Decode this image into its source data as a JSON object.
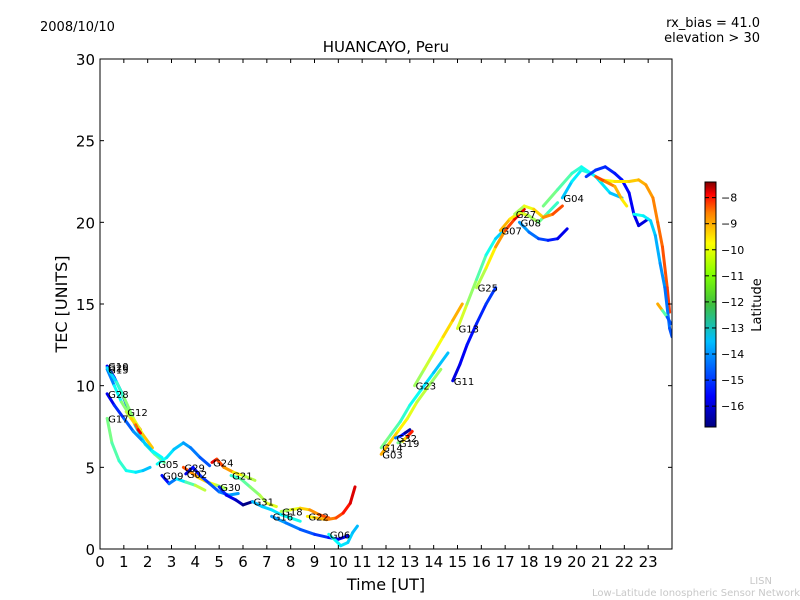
{
  "header": {
    "date": "2008/10/10",
    "rx_bias": "rx_bias = 41.0",
    "elevation": "elevation > 30"
  },
  "footer": {
    "short": "LISN",
    "long": "Low-Latitude Ionospheric Sensor Network"
  },
  "chart_data": {
    "type": "scatter",
    "title": "HUANCAYO, Peru",
    "xlabel": "Time [UT]",
    "ylabel": "TEC [UNITS]",
    "xlim": [
      0,
      24
    ],
    "ylim": [
      0,
      30
    ],
    "xticks": [
      0,
      1,
      2,
      3,
      4,
      5,
      6,
      7,
      8,
      9,
      10,
      11,
      12,
      13,
      14,
      15,
      16,
      17,
      18,
      19,
      20,
      21,
      22,
      23
    ],
    "yticks": [
      0,
      5,
      10,
      15,
      20,
      25,
      30
    ],
    "grid": false,
    "colorbar": {
      "label": "Latitude",
      "min": -16.8,
      "max": -7.4,
      "ticks": [
        -8,
        -9,
        -10,
        -11,
        -12,
        -13,
        -14,
        -15,
        -16
      ],
      "colors": [
        "#00007f",
        "#0000ff",
        "#007fff",
        "#00ffff",
        "#7fff7f",
        "#ffff00",
        "#ff7f00",
        "#ff0000",
        "#7f0000"
      ]
    },
    "series": [
      {
        "name": "G10",
        "lat": [
          -16,
          -12
        ],
        "points": [
          [
            0.3,
            11.2
          ],
          [
            0.6,
            10.5
          ],
          [
            0.9,
            9.6
          ],
          [
            1.2,
            8.5
          ],
          [
            1.5,
            7.5
          ],
          [
            1.9,
            6.4
          ],
          [
            2.3,
            5.8
          ],
          [
            2.7,
            5.3
          ]
        ]
      },
      {
        "name": "G15",
        "lat": [
          -15,
          -9
        ],
        "points": [
          [
            0.3,
            11.0
          ],
          [
            0.6,
            10.0
          ],
          [
            0.9,
            9.0
          ],
          [
            1.2,
            8.3
          ],
          [
            1.5,
            7.7
          ],
          [
            1.7,
            7.3
          ]
        ]
      },
      {
        "name": "G26",
        "lat": [
          -14,
          -10
        ],
        "points": [
          [
            0.3,
            11.1
          ],
          [
            0.7,
            10.2
          ],
          [
            1.0,
            9.3
          ],
          [
            1.4,
            8.0
          ],
          [
            1.8,
            7.0
          ],
          [
            2.2,
            6.2
          ]
        ]
      },
      {
        "name": "G28",
        "lat": [
          -16,
          -13
        ],
        "points": [
          [
            0.3,
            9.5
          ],
          [
            0.6,
            8.8
          ],
          [
            1.0,
            8.0
          ],
          [
            1.4,
            7.2
          ],
          [
            1.8,
            6.6
          ],
          [
            2.2,
            6.0
          ],
          [
            2.6,
            5.6
          ]
        ]
      },
      {
        "name": "G12",
        "lat": [
          -12,
          -8
        ],
        "points": [
          [
            1.1,
            8.4
          ],
          [
            1.3,
            8.0
          ],
          [
            1.5,
            7.6
          ],
          [
            1.6,
            7.3
          ],
          [
            1.7,
            7.1
          ]
        ]
      },
      {
        "name": "G17",
        "lat": [
          -12,
          -14
        ],
        "points": [
          [
            0.3,
            8.0
          ],
          [
            0.5,
            6.5
          ],
          [
            0.8,
            5.4
          ],
          [
            1.1,
            4.8
          ],
          [
            1.5,
            4.7
          ],
          [
            1.8,
            4.8
          ],
          [
            2.1,
            5.0
          ]
        ]
      },
      {
        "name": "G05",
        "lat": [
          -13,
          -15
        ],
        "points": [
          [
            2.4,
            5.2
          ],
          [
            2.8,
            5.6
          ],
          [
            3.1,
            6.1
          ],
          [
            3.5,
            6.5
          ],
          [
            3.8,
            6.2
          ],
          [
            4.2,
            5.6
          ],
          [
            4.6,
            5.1
          ]
        ]
      },
      {
        "name": "G09",
        "lat": [
          -16,
          -11
        ],
        "points": [
          [
            2.6,
            4.5
          ],
          [
            2.9,
            4.0
          ],
          [
            3.2,
            4.3
          ],
          [
            3.6,
            4.1
          ],
          [
            4.0,
            3.9
          ],
          [
            4.4,
            3.6
          ]
        ]
      },
      {
        "name": "G29",
        "lat": [
          -9,
          -12
        ],
        "points": [
          [
            3.5,
            5.0
          ],
          [
            3.8,
            4.7
          ],
          [
            4.1,
            4.4
          ],
          [
            4.5,
            4.1
          ],
          [
            4.9,
            3.9
          ],
          [
            5.3,
            3.7
          ]
        ]
      },
      {
        "name": "G02",
        "lat": [
          -16,
          -14
        ],
        "points": [
          [
            3.6,
            4.6
          ],
          [
            3.9,
            5.0
          ],
          [
            4.2,
            4.5
          ],
          [
            4.6,
            4.0
          ],
          [
            5.0,
            3.5
          ],
          [
            5.4,
            3.3
          ],
          [
            5.8,
            3.4
          ]
        ]
      },
      {
        "name": "G24",
        "lat": [
          -8,
          -12
        ],
        "points": [
          [
            4.7,
            5.3
          ],
          [
            4.9,
            5.5
          ],
          [
            5.2,
            5.0
          ],
          [
            5.6,
            4.7
          ],
          [
            6.0,
            4.5
          ],
          [
            6.5,
            4.2
          ]
        ]
      },
      {
        "name": "G30",
        "lat": [
          -15,
          -17
        ],
        "points": [
          [
            5.0,
            3.8
          ],
          [
            5.3,
            3.3
          ],
          [
            5.7,
            3.0
          ],
          [
            6.0,
            2.7
          ],
          [
            6.4,
            2.9
          ]
        ]
      },
      {
        "name": "G21",
        "lat": [
          -13,
          -11
        ],
        "points": [
          [
            5.5,
            4.5
          ],
          [
            5.9,
            4.3
          ],
          [
            6.3,
            3.8
          ],
          [
            6.7,
            3.3
          ],
          [
            7.0,
            2.8
          ],
          [
            7.4,
            2.6
          ]
        ]
      },
      {
        "name": "G31",
        "lat": [
          -14,
          -13
        ],
        "points": [
          [
            6.4,
            2.9
          ],
          [
            6.8,
            2.6
          ],
          [
            7.2,
            2.4
          ],
          [
            7.6,
            2.1
          ],
          [
            8.0,
            1.9
          ],
          [
            8.4,
            1.7
          ]
        ]
      },
      {
        "name": "G18",
        "lat": [
          -12,
          -9
        ],
        "points": [
          [
            7.6,
            2.3
          ],
          [
            8.0,
            2.4
          ],
          [
            8.4,
            2.5
          ],
          [
            8.8,
            2.4
          ],
          [
            9.2,
            2.1
          ],
          [
            9.6,
            1.9
          ]
        ]
      },
      {
        "name": "G22",
        "lat": [
          -11,
          -8
        ],
        "points": [
          [
            8.7,
            2.0
          ],
          [
            9.1,
            1.9
          ],
          [
            9.5,
            1.8
          ],
          [
            9.9,
            1.9
          ],
          [
            10.2,
            2.2
          ],
          [
            10.5,
            2.8
          ],
          [
            10.7,
            3.8
          ]
        ]
      },
      {
        "name": "G16",
        "lat": [
          -14,
          -16
        ],
        "points": [
          [
            7.2,
            2.0
          ],
          [
            7.8,
            1.6
          ],
          [
            8.4,
            1.2
          ],
          [
            9.0,
            0.9
          ],
          [
            9.6,
            0.7
          ],
          [
            10.0,
            0.6
          ],
          [
            10.4,
            0.8
          ]
        ]
      },
      {
        "name": "G06",
        "lat": [
          -13,
          -14
        ],
        "points": [
          [
            9.6,
            0.9
          ],
          [
            9.9,
            0.5
          ],
          [
            10.1,
            0.2
          ],
          [
            10.4,
            0.4
          ],
          [
            10.6,
            1.0
          ],
          [
            10.8,
            1.4
          ]
        ]
      },
      {
        "name": "G03",
        "lat": [
          -10,
          -12
        ],
        "points": [
          [
            11.8,
            5.8
          ],
          [
            12.1,
            6.4
          ],
          [
            12.5,
            7.2
          ],
          [
            12.9,
            8.0
          ],
          [
            13.3,
            9.0
          ],
          [
            13.8,
            10.0
          ],
          [
            14.3,
            11.0
          ]
        ]
      },
      {
        "name": "G14",
        "lat": [
          -12,
          -14
        ],
        "points": [
          [
            11.8,
            6.2
          ],
          [
            12.2,
            7.0
          ],
          [
            12.6,
            7.8
          ],
          [
            13.0,
            8.8
          ],
          [
            13.5,
            9.8
          ],
          [
            14.0,
            10.8
          ],
          [
            14.6,
            12.0
          ]
        ]
      },
      {
        "name": "G32",
        "lat": [
          -14,
          -17
        ],
        "points": [
          [
            12.4,
            6.8
          ],
          [
            12.6,
            6.9
          ],
          [
            12.8,
            7.1
          ],
          [
            13.0,
            7.3
          ]
        ]
      },
      {
        "name": "G19",
        "lat": [
          -13,
          -8
        ],
        "points": [
          [
            12.5,
            6.5
          ],
          [
            12.7,
            6.6
          ],
          [
            12.9,
            6.9
          ],
          [
            13.1,
            7.2
          ]
        ]
      },
      {
        "name": "G23",
        "lat": [
          -12,
          -10
        ],
        "points": [
          [
            13.2,
            10.0
          ],
          [
            13.6,
            11.0
          ],
          [
            14.0,
            12.0
          ],
          [
            14.4,
            13.0
          ],
          [
            14.8,
            14.0
          ],
          [
            15.2,
            15.0
          ]
        ]
      },
      {
        "name": "G11",
        "lat": [
          -16,
          -15
        ],
        "points": [
          [
            14.8,
            10.3
          ],
          [
            15.1,
            11.3
          ],
          [
            15.4,
            12.5
          ],
          [
            15.8,
            13.8
          ],
          [
            16.2,
            15.0
          ],
          [
            16.6,
            16.0
          ]
        ]
      },
      {
        "name": "G13",
        "lat": [
          -11,
          -14
        ],
        "points": [
          [
            15.0,
            13.5
          ],
          [
            15.4,
            15.0
          ],
          [
            15.8,
            16.5
          ],
          [
            16.2,
            18.0
          ],
          [
            16.6,
            19.0
          ],
          [
            17.0,
            19.6
          ]
        ]
      },
      {
        "name": "G25",
        "lat": [
          -12,
          -8
        ],
        "points": [
          [
            15.8,
            16.0
          ],
          [
            16.2,
            17.2
          ],
          [
            16.6,
            18.5
          ],
          [
            17.0,
            19.5
          ],
          [
            17.4,
            20.2
          ],
          [
            17.8,
            20.8
          ]
        ]
      },
      {
        "name": "G07",
        "lat": [
          -10,
          -13
        ],
        "points": [
          [
            16.8,
            19.5
          ],
          [
            17.2,
            20.2
          ],
          [
            17.6,
            20.6
          ],
          [
            18.0,
            20.4
          ],
          [
            18.4,
            20.0
          ],
          [
            18.8,
            20.6
          ],
          [
            19.2,
            21.2
          ]
        ]
      },
      {
        "name": "G27",
        "lat": [
          -12,
          -9
        ],
        "points": [
          [
            17.4,
            20.5
          ],
          [
            17.8,
            21.0
          ],
          [
            18.2,
            20.8
          ],
          [
            18.6,
            20.3
          ],
          [
            19.0,
            20.5
          ],
          [
            19.4,
            21.0
          ]
        ]
      },
      {
        "name": "G08",
        "lat": [
          -14,
          -16
        ],
        "points": [
          [
            17.6,
            20.0
          ],
          [
            18.0,
            19.4
          ],
          [
            18.4,
            19.0
          ],
          [
            18.8,
            18.9
          ],
          [
            19.2,
            19.0
          ],
          [
            19.6,
            19.6
          ]
        ]
      },
      {
        "name": "G04",
        "lat": [
          -14,
          -12
        ],
        "points": [
          [
            19.4,
            21.5
          ],
          [
            19.8,
            22.5
          ],
          [
            20.2,
            23.2
          ],
          [
            20.6,
            23.0
          ],
          [
            21.0,
            22.6
          ],
          [
            21.4,
            22.4
          ]
        ]
      },
      {
        "name": "",
        "lat": [
          -12,
          -14
        ],
        "points": [
          [
            18.6,
            21.0
          ],
          [
            19.2,
            22.0
          ],
          [
            19.8,
            23.0
          ],
          [
            20.2,
            23.4
          ],
          [
            20.8,
            22.8
          ],
          [
            21.4,
            21.8
          ],
          [
            21.9,
            21.5
          ]
        ]
      },
      {
        "name": "",
        "lat": [
          -15,
          -16
        ],
        "points": [
          [
            20.4,
            22.8
          ],
          [
            20.8,
            23.2
          ],
          [
            21.2,
            23.4
          ],
          [
            21.6,
            23.0
          ],
          [
            21.9,
            22.6
          ],
          [
            22.2,
            21.8
          ],
          [
            22.4,
            20.5
          ],
          [
            22.6,
            19.8
          ],
          [
            23.0,
            20.2
          ]
        ]
      },
      {
        "name": "",
        "lat": [
          -11,
          -9
        ],
        "points": [
          [
            21.0,
            22.6
          ],
          [
            21.6,
            22.5
          ],
          [
            22.2,
            22.5
          ],
          [
            22.6,
            22.6
          ],
          [
            22.9,
            22.3
          ],
          [
            23.2,
            21.5
          ],
          [
            23.4,
            20.0
          ],
          [
            23.6,
            18.5
          ],
          [
            23.8,
            16.0
          ],
          [
            23.9,
            14.5
          ]
        ]
      },
      {
        "name": "",
        "lat": [
          -9,
          -11
        ],
        "points": [
          [
            20.8,
            22.8
          ],
          [
            21.2,
            22.5
          ],
          [
            21.6,
            22.2
          ],
          [
            21.9,
            21.4
          ],
          [
            22.1,
            21.0
          ]
        ]
      },
      {
        "name": "",
        "lat": [
          -13,
          -15
        ],
        "points": [
          [
            22.4,
            20.5
          ],
          [
            22.8,
            20.4
          ],
          [
            23.1,
            20.1
          ],
          [
            23.3,
            19.2
          ],
          [
            23.5,
            17.5
          ],
          [
            23.7,
            16.0
          ],
          [
            23.9,
            13.5
          ],
          [
            24.0,
            13.0
          ]
        ]
      },
      {
        "name": "",
        "lat": [
          -9,
          -16
        ],
        "points": [
          [
            23.4,
            15.0
          ],
          [
            23.6,
            14.6
          ],
          [
            23.8,
            14.2
          ],
          [
            23.95,
            13.8
          ]
        ]
      }
    ]
  }
}
